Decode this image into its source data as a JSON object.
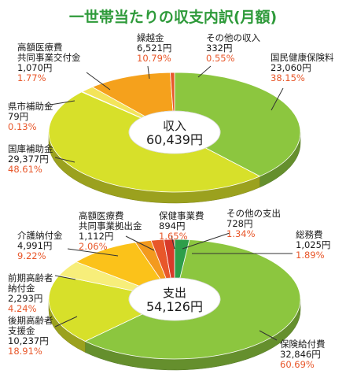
{
  "title": "一世帯当たりの収支内訳(月額)",
  "chart_data": [
    {
      "type": "pie",
      "variant": "donut-3d",
      "center_label": "収入",
      "center_value": "60,439円",
      "slices": [
        {
          "name": "国民健康保険料",
          "amount": "23,060円",
          "value": 23060,
          "percent": "38.15%",
          "color": "#8cc63f"
        },
        {
          "name": "国庫補助金",
          "amount": "29,377円",
          "value": 29377,
          "percent": "48.61%",
          "color": "#d7e02a"
        },
        {
          "name": "県市補助金",
          "amount": "79円",
          "value": 79,
          "percent": "0.13%",
          "color": "#e2e86a"
        },
        {
          "name": "高額医療費共同事業交付金",
          "name_lines": [
            "高額医療費",
            "共同事業交付金"
          ],
          "amount": "1,070円",
          "value": 1070,
          "percent": "1.77%",
          "color": "#f3e45a"
        },
        {
          "name": "繰越金",
          "amount": "6,521円",
          "value": 6521,
          "percent": "10.79%",
          "color": "#f5a11c"
        },
        {
          "name": "その他の収入",
          "amount": "332円",
          "value": 332,
          "percent": "0.55%",
          "color": "#e8572a"
        }
      ]
    },
    {
      "type": "pie",
      "variant": "donut-3d",
      "center_label": "支出",
      "center_value": "54,126円",
      "slices": [
        {
          "name": "総務費",
          "amount": "1,025円",
          "value": 1025,
          "percent": "1.89%",
          "color": "#2e9e4a"
        },
        {
          "name": "保険給付費",
          "amount": "32,846円",
          "value": 32846,
          "percent": "60.69%",
          "color": "#8cc63f"
        },
        {
          "name": "後期高齢者支援金",
          "name_lines": [
            "後期高齢者",
            "支援金"
          ],
          "amount": "10,237円",
          "value": 10237,
          "percent": "18.91%",
          "color": "#d7e02a"
        },
        {
          "name": "前期高齢者納付金",
          "name_lines": [
            "前期高齢者",
            "納付金"
          ],
          "amount": "2,293円",
          "value": 2293,
          "percent": "4.24%",
          "color": "#f7ee7a"
        },
        {
          "name": "介護納付金",
          "amount": "4,991円",
          "value": 4991,
          "percent": "9.22%",
          "color": "#fbc21a"
        },
        {
          "name": "高額医療費共同事業拠出金",
          "name_lines": [
            "高額医療費",
            "共同事業拠出金"
          ],
          "amount": "1,112円",
          "value": 1112,
          "percent": "2.06%",
          "color": "#f39a1e"
        },
        {
          "name": "保健事業費",
          "amount": "894円",
          "value": 894,
          "percent": "1.65%",
          "color": "#e8572a"
        },
        {
          "name": "その他の支出",
          "amount": "728円",
          "value": 728,
          "percent": "1.34%",
          "color": "#d83a2a"
        }
      ]
    }
  ]
}
